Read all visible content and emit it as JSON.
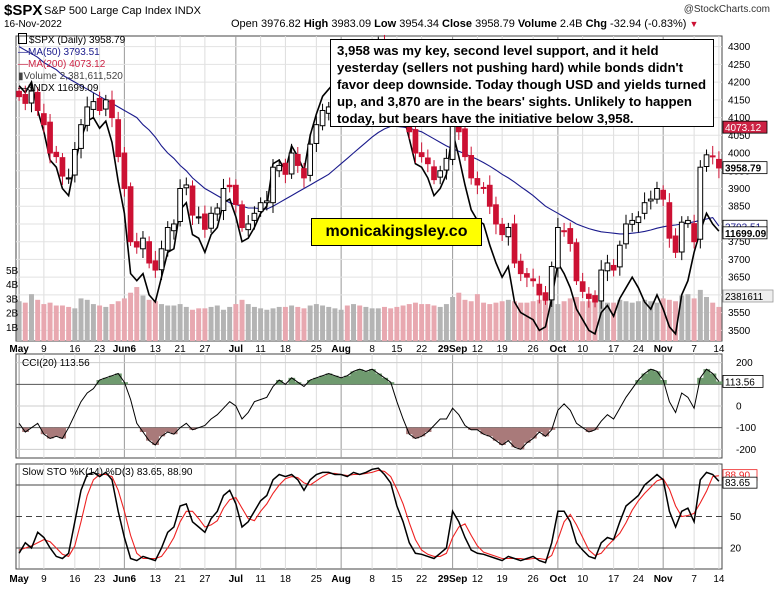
{
  "header": {
    "symbol": "$SPX",
    "name": "S&P 500 Large Cap Index INDX",
    "date": "16-Nov-2022",
    "open_label": "Open",
    "open": "3976.82",
    "high_label": "High",
    "high": "3983.09",
    "low_label": "Low",
    "low": "3954.34",
    "close_label": "Close",
    "close": "3958.79",
    "volume_label": "Volume",
    "volume": "2.4B",
    "chg_label": "Chg",
    "chg": "-32.94 (-0.83%)",
    "watermark": "@StockCharts.com"
  },
  "legend": {
    "price": "$SPX (Daily) 3958.79",
    "ma50": "MA(50) 3793.51",
    "ma200": "MA(200) 4073.12",
    "volume": "Volume 2,381,611,520",
    "ndx": "$NDX 11699.09"
  },
  "annotation": "3,958 was my key, second level support, and it held yesterday (sellers not pushing hard) while bonds didn't favor deep downside. Today though USD and yields turned up, and 3,870 are in the bears' sights. Unlikely to happen today, but bears have the initiative below 3,958.",
  "brand": "monicakingsley.co",
  "panels": {
    "cci_label": "CCI(20) 113.56",
    "sto_label": "Slow STO %K(14) %D(3) 83.65, 88.90",
    "sto_d_value": "88.90"
  },
  "colors": {
    "up": "#000000",
    "down": "#cc1133",
    "ma50": "#1a1a8c",
    "ma200": "#cc2244",
    "vol_up": "#b4b4b4",
    "vol_down": "#e8a8b0",
    "cci_pos": "#6f9a6f",
    "cci_neg": "#a97a7a",
    "sto_k": "#000000",
    "sto_d": "#ee2222"
  },
  "chart_data": [
    {
      "type": "candlestick",
      "title": "$SPX S&P 500 Large Cap Index INDX",
      "x_labels": [
        "May",
        "9",
        "16",
        "23",
        "Jun6",
        "13",
        "21",
        "27",
        "Jul",
        "11",
        "18",
        "25",
        "Aug",
        "8",
        "15",
        "22",
        "29Sep",
        "12",
        "19",
        "26",
        "Oct",
        "10",
        "17",
        "24",
        "Nov",
        "7",
        "14"
      ],
      "y_ticks": [
        3500,
        3550,
        3600,
        3650,
        3700,
        3750,
        3800,
        3850,
        3900,
        3950,
        4000,
        4050,
        4100,
        4150,
        4200,
        4250,
        4300
      ],
      "ylim": [
        3470,
        4330
      ],
      "value_labels": {
        "close": "3958.79",
        "ma50": "3793.51",
        "ma200": "4073.12",
        "ndx": "11699.09",
        "volume": "2381611"
      },
      "volume_ticks": [
        "5B",
        "4B",
        "3B",
        "2B",
        "1B"
      ],
      "closes": [
        4159,
        4140,
        4175,
        4120,
        4080,
        4000,
        3990,
        3935,
        3930,
        4010,
        4080,
        4130,
        4145,
        4120,
        4150,
        4100,
        3990,
        3900,
        3750,
        3735,
        3760,
        3690,
        3670,
        3730,
        3790,
        3800,
        3900,
        3910,
        3825,
        3820,
        3785,
        3830,
        3845,
        3900,
        3905,
        3855,
        3790,
        3800,
        3830,
        3860,
        3865,
        3960,
        3965,
        3940,
        4000,
        3965,
        3930,
        4025,
        4080,
        4120,
        4130,
        4150,
        4160,
        4155,
        4210,
        4200,
        4230,
        4280,
        4300,
        4270,
        4230,
        4140,
        4120,
        4060,
        4000,
        3990,
        3970,
        3925,
        3950,
        3985,
        4110,
        4060,
        3990,
        3930,
        3910,
        3900,
        3850,
        3800,
        3770,
        3790,
        3690,
        3660,
        3650,
        3640,
        3600,
        3585,
        3680,
        3790,
        3780,
        3745,
        3640,
        3610,
        3590,
        3580,
        3670,
        3690,
        3670,
        3740,
        3800,
        3810,
        3820,
        3860,
        3870,
        3900,
        3870,
        3760,
        3720,
        3805,
        3810,
        3750,
        3960,
        3995,
        3990,
        3958
      ],
      "ma50": [
        4300,
        4290,
        4280,
        4270,
        4255,
        4245,
        4235,
        4220,
        4210,
        4200,
        4190,
        4180,
        4170,
        4160,
        4150,
        4140,
        4130,
        4120,
        4110,
        4100,
        4080,
        4065,
        4045,
        4020,
        4000,
        3985,
        3965,
        3950,
        3930,
        3915,
        3900,
        3890,
        3880,
        3870,
        3860,
        3855,
        3850,
        3845,
        3845,
        3843,
        3842,
        3850,
        3860,
        3870,
        3880,
        3890,
        3900,
        3910,
        3920,
        3930,
        3940,
        3955,
        3970,
        3985,
        4000,
        4015,
        4030,
        4045,
        4058,
        4068,
        4075,
        4075,
        4073,
        4070,
        4065,
        4060,
        4050,
        4040,
        4030,
        4020,
        4012,
        4005,
        3998,
        3990,
        3982,
        3973,
        3963,
        3952,
        3940,
        3930,
        3918,
        3905,
        3893,
        3880,
        3865,
        3850,
        3840,
        3830,
        3820,
        3810,
        3800,
        3793,
        3787,
        3782,
        3778,
        3776,
        3774,
        3772,
        3772,
        3774,
        3776,
        3779,
        3783,
        3788,
        3792,
        3795,
        3797,
        3800,
        3803,
        3806,
        3810,
        3814,
        3818,
        3794
      ],
      "ndx_closes": [
        4190,
        4170,
        4200,
        4120,
        4060,
        3980,
        3960,
        3900,
        3880,
        3970,
        4040,
        4090,
        4100,
        4070,
        4090,
        4030,
        3920,
        3830,
        3660,
        3640,
        3660,
        3600,
        3580,
        3650,
        3720,
        3730,
        3840,
        3860,
        3770,
        3760,
        3720,
        3770,
        3790,
        3860,
        3870,
        3820,
        3750,
        3760,
        3790,
        3830,
        3850,
        3970,
        3980,
        3950,
        4020,
        3990,
        3950,
        4050,
        4110,
        4160,
        4180,
        4200,
        4210,
        4200,
        4250,
        4240,
        4270,
        4310,
        4320,
        4280,
        4230,
        4140,
        4110,
        4040,
        3970,
        3960,
        3930,
        3880,
        3900,
        3940,
        4060,
        3990,
        3910,
        3840,
        3810,
        3800,
        3740,
        3690,
        3650,
        3680,
        3580,
        3550,
        3540,
        3530,
        3500,
        3510,
        3590,
        3690,
        3660,
        3620,
        3560,
        3530,
        3500,
        3490,
        3550,
        3570,
        3540,
        3590,
        3620,
        3650,
        3620,
        3580,
        3560,
        3600,
        3560,
        3510,
        3490,
        3600,
        3640,
        3720,
        3780,
        3830,
        3800,
        3780
      ],
      "volume_billions": [
        2.8,
        2.7,
        3.3,
        2.9,
        2.6,
        2.7,
        2.5,
        2.5,
        2.4,
        2.3,
        3.0,
        2.9,
        2.6,
        2.5,
        2.4,
        2.6,
        2.8,
        3.0,
        3.4,
        3.8,
        3.2,
        2.9,
        2.8,
        2.6,
        2.5,
        2.5,
        2.6,
        2.4,
        2.2,
        2.3,
        2.3,
        2.4,
        2.5,
        2.2,
        2.4,
        2.6,
        2.9,
        2.6,
        2.4,
        2.3,
        2.2,
        2.3,
        2.4,
        2.4,
        2.5,
        2.4,
        2.3,
        2.5,
        2.6,
        2.5,
        2.4,
        2.3,
        2.2,
        2.5,
        2.6,
        2.5,
        2.4,
        2.3,
        2.3,
        2.4,
        2.3,
        2.4,
        2.5,
        2.6,
        2.7,
        2.6,
        2.6,
        2.5,
        2.4,
        2.6,
        3.1,
        3.4,
        2.9,
        2.8,
        3.3,
        2.7,
        2.6,
        2.7,
        2.8,
        2.9,
        2.8,
        2.7,
        2.7,
        2.8,
        2.9,
        2.9,
        3.0,
        2.6,
        2.8,
        3.0,
        3.1,
        2.8,
        2.8,
        3.0,
        3.2,
        2.7,
        2.7,
        2.9,
        2.8,
        2.7,
        2.8,
        2.9,
        2.8,
        2.7,
        3.0,
        2.9,
        2.8,
        3.2,
        3.3,
        3.0,
        3.6,
        3.1,
        2.7,
        2.4
      ]
    },
    {
      "type": "line",
      "title": "CCI(20) 113.56",
      "y_ticks": [
        200,
        100,
        0,
        -100,
        -200
      ],
      "ylim": [
        -240,
        240
      ],
      "current_value": "113.56",
      "values": [
        -80,
        -120,
        -100,
        -80,
        -130,
        -150,
        -140,
        -150,
        -100,
        -40,
        20,
        60,
        80,
        120,
        130,
        140,
        150,
        110,
        30,
        -80,
        -120,
        -160,
        -180,
        -140,
        -120,
        -130,
        -100,
        -80,
        -110,
        -100,
        -90,
        -60,
        -40,
        -10,
        20,
        0,
        -60,
        -30,
        20,
        30,
        40,
        90,
        120,
        100,
        130,
        110,
        90,
        120,
        130,
        140,
        150,
        140,
        130,
        140,
        160,
        170,
        160,
        170,
        150,
        130,
        110,
        20,
        -60,
        -130,
        -150,
        -140,
        -120,
        -90,
        -60,
        -60,
        -10,
        -40,
        -90,
        -110,
        -110,
        -130,
        -140,
        -160,
        -180,
        -160,
        -190,
        -200,
        -170,
        -150,
        -120,
        -140,
        -110,
        -20,
        10,
        -20,
        -80,
        -100,
        -120,
        -110,
        -70,
        -40,
        -60,
        -10,
        40,
        80,
        120,
        150,
        170,
        160,
        120,
        20,
        -30,
        60,
        40,
        -10,
        130,
        170,
        150,
        113.56
      ]
    },
    {
      "type": "line",
      "title": "Slow STO %K(14) %D(3) 83.65, 88.90",
      "y_ticks": [
        80,
        50,
        20
      ],
      "ylim": [
        0,
        100
      ],
      "current_k": "83.65",
      "current_d": "88.90",
      "series": [
        {
          "name": "%K(14)",
          "values": [
            15,
            25,
            20,
            35,
            30,
            20,
            12,
            10,
            15,
            45,
            75,
            90,
            92,
            88,
            92,
            85,
            55,
            30,
            10,
            8,
            12,
            10,
            8,
            20,
            35,
            40,
            60,
            62,
            45,
            40,
            35,
            48,
            55,
            70,
            75,
            62,
            40,
            45,
            55,
            65,
            70,
            85,
            90,
            88,
            90,
            85,
            75,
            85,
            90,
            92,
            92,
            90,
            90,
            88,
            92,
            90,
            92,
            95,
            96,
            90,
            82,
            60,
            45,
            25,
            15,
            14,
            12,
            10,
            15,
            20,
            55,
            45,
            30,
            18,
            15,
            14,
            12,
            10,
            8,
            12,
            10,
            8,
            10,
            12,
            8,
            6,
            25,
            55,
            55,
            45,
            25,
            18,
            12,
            10,
            25,
            30,
            28,
            45,
            60,
            65,
            70,
            80,
            85,
            90,
            85,
            55,
            40,
            55,
            58,
            45,
            85,
            92,
            90,
            83.65
          ]
        },
        {
          "name": "%D(3)",
          "values": [
            18,
            20,
            22,
            25,
            28,
            26,
            20,
            14,
            12,
            22,
            45,
            70,
            85,
            90,
            90,
            88,
            75,
            55,
            32,
            15,
            10,
            10,
            10,
            12,
            20,
            30,
            45,
            55,
            55,
            48,
            40,
            42,
            46,
            58,
            66,
            68,
            58,
            48,
            46,
            55,
            62,
            72,
            80,
            86,
            88,
            87,
            82,
            80,
            84,
            88,
            91,
            91,
            90,
            89,
            90,
            90,
            91,
            92,
            94,
            93,
            88,
            76,
            62,
            44,
            28,
            18,
            14,
            12,
            12,
            15,
            30,
            40,
            43,
            32,
            22,
            16,
            14,
            12,
            10,
            10,
            10,
            10,
            9,
            10,
            10,
            9,
            13,
            28,
            45,
            52,
            42,
            30,
            18,
            13,
            15,
            22,
            28,
            34,
            44,
            56,
            65,
            72,
            78,
            84,
            86,
            76,
            60,
            50,
            51,
            53,
            63,
            74,
            88,
            88.9
          ]
        }
      ]
    }
  ]
}
